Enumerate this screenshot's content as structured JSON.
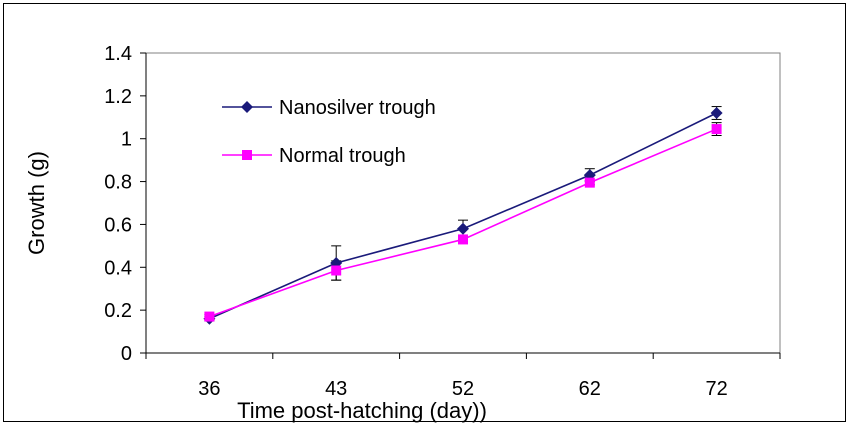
{
  "chart_data": {
    "type": "line",
    "title": "",
    "xlabel": "Time post-hatching (day))",
    "ylabel": "Growth (g)",
    "categories": [
      "36",
      "43",
      "52",
      "62",
      "72"
    ],
    "ylim": [
      0,
      1.4
    ],
    "yticks": [
      "0",
      "0.2",
      "0.4",
      "0.6",
      "0.8",
      "1",
      "1.2",
      "1.4"
    ],
    "grid": false,
    "legend_position": "top-left",
    "series": [
      {
        "name": "Nanosilver trough",
        "color": "#1a1a7a",
        "marker": "diamond",
        "values": [
          0.16,
          0.42,
          0.58,
          0.83,
          1.12
        ],
        "error": [
          0.01,
          0.08,
          0.04,
          0.03,
          0.03
        ]
      },
      {
        "name": "Normal trough",
        "color": "#ff00ff",
        "marker": "square",
        "values": [
          0.17,
          0.385,
          0.53,
          0.795,
          1.045
        ],
        "error": [
          0.01,
          0.045,
          0.01,
          0.01,
          0.03
        ]
      }
    ]
  }
}
